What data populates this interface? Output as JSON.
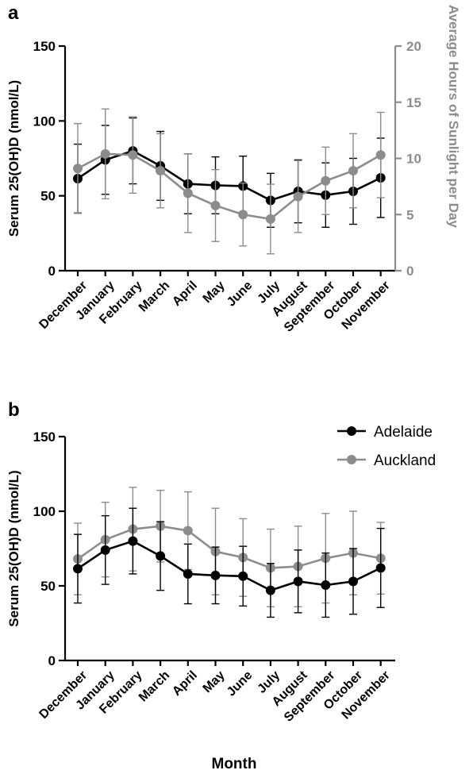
{
  "chart_data": [
    {
      "panel_label": "a",
      "type": "line",
      "categories": [
        "December",
        "January",
        "February",
        "March",
        "April",
        "May",
        "June",
        "July",
        "August",
        "September",
        "October",
        "November"
      ],
      "ylabel": "Serum 25(OH)D (nmol/L)",
      "ylim": [
        0,
        150
      ],
      "yticks": [
        "0",
        "50",
        "100",
        "150"
      ],
      "y2label": "Average Hours of Sunlight per Day",
      "y2lim": [
        0,
        20
      ],
      "y2ticks": [
        "0",
        "5",
        "10",
        "15",
        "20"
      ],
      "series": [
        {
          "axis": "left",
          "color": "#000000",
          "values": [
            61.5,
            74,
            80,
            70,
            58,
            57,
            56.5,
            47,
            53,
            50.5,
            53,
            62
          ],
          "errors": [
            23,
            23,
            22,
            23,
            20,
            19,
            20,
            18,
            21,
            21.5,
            22,
            26.5
          ]
        },
        {
          "axis": "right",
          "color": "#8c8c8c",
          "values": [
            9.1,
            10.4,
            10.3,
            8.9,
            6.9,
            5.8,
            5.0,
            4.6,
            6.6,
            8.0,
            8.9,
            10.3
          ],
          "errors": [
            4.0,
            4.0,
            3.4,
            3.3,
            3.5,
            3.2,
            2.8,
            3.1,
            3.2,
            3.0,
            3.3,
            3.8
          ]
        }
      ]
    },
    {
      "panel_label": "b",
      "type": "line",
      "categories": [
        "December",
        "January",
        "February",
        "March",
        "April",
        "May",
        "June",
        "July",
        "August",
        "September",
        "October",
        "November"
      ],
      "xlabel": "Month",
      "ylabel": "Serum 25(OH)D (nmol/L)",
      "ylim": [
        0,
        150
      ],
      "yticks": [
        "0",
        "50",
        "100",
        "150"
      ],
      "legend_position": "top-right",
      "series": [
        {
          "name": "Adelaide",
          "color": "#000000",
          "values": [
            61.5,
            74,
            80,
            70,
            58,
            57,
            56.5,
            47,
            53,
            50.5,
            53,
            62
          ],
          "errors": [
            23,
            23,
            22,
            23,
            20,
            19,
            20,
            18,
            21,
            21.5,
            22,
            26.5
          ]
        },
        {
          "name": "Auckland",
          "color": "#8c8c8c",
          "values": [
            68,
            81,
            88,
            90,
            87,
            73,
            69,
            62,
            63,
            68.5,
            72,
            68.5
          ],
          "errors": [
            24,
            25,
            28,
            24,
            26,
            29,
            26,
            26,
            27,
            30,
            28,
            24
          ]
        }
      ]
    }
  ]
}
